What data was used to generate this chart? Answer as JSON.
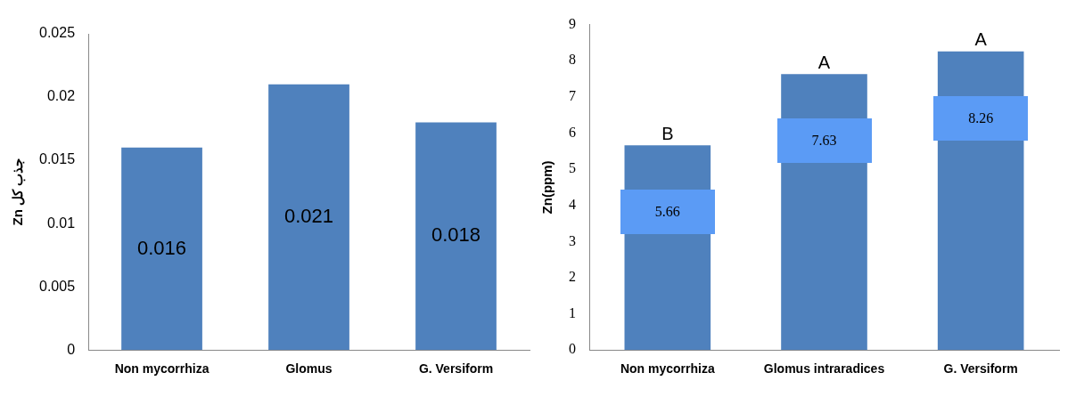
{
  "chart_data": [
    {
      "type": "bar",
      "ylabel": "Zn جذب کل",
      "categories": [
        "Non mycorrhiza",
        "Glomus",
        "G. Versiform"
      ],
      "values": [
        0.016,
        0.021,
        0.018
      ],
      "color": "#4f81bd",
      "ylim": [
        0,
        0.025
      ],
      "yticks": [
        0,
        0.005,
        0.01,
        0.015,
        0.02,
        0.025
      ],
      "grid": false,
      "legend": false,
      "data_labels": true
    },
    {
      "type": "bar",
      "ylabel": "Zn(ppm)",
      "categories": [
        "Non mycorrhiza",
        "Glomus intraradices",
        "G. Versiform"
      ],
      "values": [
        5.66,
        7.63,
        8.26
      ],
      "color": "#4f81bd",
      "ylim": [
        0,
        9
      ],
      "yticks": [
        0,
        1,
        2,
        3,
        4,
        5,
        6,
        7,
        8,
        9
      ],
      "grid": false,
      "legend": false,
      "data_labels": true,
      "annotations": [
        {
          "text": "B",
          "x": "Non mycorrhiza",
          "y": 5.66
        },
        {
          "text": "A",
          "x": "Glomus intraradices",
          "y": 7.63
        },
        {
          "text": "A",
          "x": "G. Versiform",
          "y": 8.26
        }
      ]
    }
  ]
}
